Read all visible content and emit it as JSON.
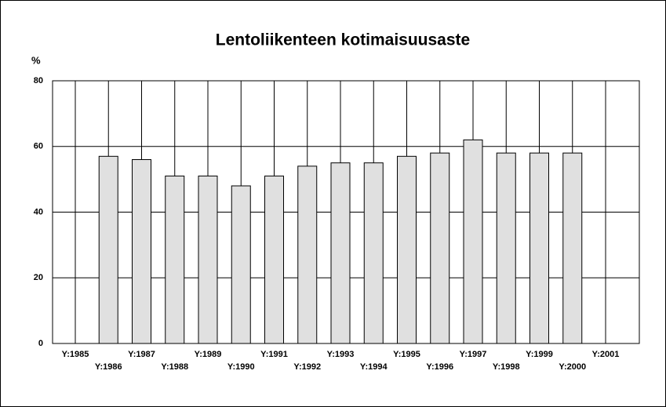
{
  "chart_data": {
    "type": "bar",
    "title": "Lentoliikenteen kotimaisuusaste",
    "y_label": "%",
    "categories": [
      "Y:1985",
      "Y:1986",
      "Y:1987",
      "Y:1988",
      "Y:1989",
      "Y:1990",
      "Y:1991",
      "Y:1992",
      "Y:1993",
      "Y:1994",
      "Y:1995",
      "Y:1996",
      "Y:1997",
      "Y:1998",
      "Y:1999",
      "Y:2000",
      "Y:2001"
    ],
    "values": [
      null,
      57,
      56,
      51,
      51,
      48,
      51,
      54,
      55,
      55,
      57,
      58,
      62,
      58,
      58,
      58,
      null
    ],
    "color": "#e0e0e0",
    "ylim": [
      0,
      80
    ],
    "yticks": [
      0,
      20,
      40,
      60,
      80
    ],
    "grid": true
  }
}
